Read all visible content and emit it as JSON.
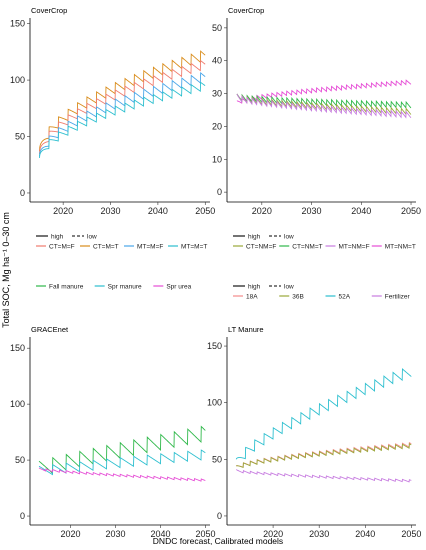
{
  "figure": {
    "y_axis_title": "Total SOC,  Mg ha⁻¹ 0–30 cm",
    "x_axis_title": "DNDC forecast, Calibrated models"
  },
  "colors": {
    "orange": "#d98c1a",
    "red_salmon": "#f07c6e",
    "blue": "#4aa6e8",
    "cyan": "#2cbfcf",
    "green": "#2fb84a",
    "olive": "#9aa83a",
    "purple": "#c77ce0",
    "magenta": "#e64ed6",
    "salmon_pink": "#f48a8a"
  },
  "legends": [
    {
      "linetype": {
        "solid": "high",
        "dashed": "low"
      },
      "items": [
        {
          "label": "CT=M=F",
          "color": "#f07c6e"
        },
        {
          "label": "CT=M=T",
          "color": "#d98c1a"
        },
        {
          "label": "MT=M=F",
          "color": "#4aa6e8"
        },
        {
          "label": "MT=M=T",
          "color": "#2cbfcf"
        }
      ]
    },
    {
      "linetype": {
        "solid": "high",
        "dashed": "low"
      },
      "items": [
        {
          "label": "CT=NM=F",
          "color": "#9aa83a"
        },
        {
          "label": "CT=NM=T",
          "color": "#2fb84a"
        },
        {
          "label": "MT=NM=F",
          "color": "#c77ce0"
        },
        {
          "label": "MT=NM=T",
          "color": "#e64ed6"
        }
      ]
    },
    {
      "items": [
        {
          "label": "Fall manure",
          "color": "#2fb84a"
        },
        {
          "label": "Spr manure",
          "color": "#2cbfcf"
        },
        {
          "label": "Spr urea",
          "color": "#e64ed6"
        }
      ]
    },
    {
      "linetype": {
        "solid": "high",
        "dashed": "low"
      },
      "items": [
        {
          "label": "18A",
          "color": "#f48a8a"
        },
        {
          "label": "36B",
          "color": "#9aa83a"
        },
        {
          "label": "52A",
          "color": "#2cbfcf"
        },
        {
          "label": "Fertilizer",
          "color": "#c77ce0"
        }
      ]
    }
  ],
  "chart_data": [
    {
      "type": "line",
      "title": "CoverCrop",
      "xlim": [
        2013,
        2051
      ],
      "ylim": [
        -8,
        155
      ],
      "x_ticks": [
        2020,
        2030,
        2040,
        2050
      ],
      "y_ticks": [
        0,
        50,
        100,
        150
      ],
      "grid": false,
      "legend_position": "bottom",
      "series": [
        {
          "name": "CT=M=T",
          "color": "#d98c1a",
          "x_start": 2015,
          "x_end": 2050,
          "start": 32,
          "end": 122,
          "curve": 0.5,
          "amp": 10,
          "period": 2
        },
        {
          "name": "CT=M=F",
          "color": "#f07c6e",
          "x_start": 2015,
          "x_end": 2050,
          "start": 30,
          "end": 114,
          "curve": 0.5,
          "amp": 9,
          "period": 2
        },
        {
          "name": "MT=M=F",
          "color": "#4aa6e8",
          "x_start": 2015,
          "x_end": 2050,
          "start": 28,
          "end": 103,
          "curve": 0.5,
          "amp": 9,
          "period": 2
        },
        {
          "name": "MT=M=T",
          "color": "#2cbfcf",
          "x_start": 2015,
          "x_end": 2050,
          "start": 27,
          "end": 95,
          "curve": 0.5,
          "amp": 8,
          "period": 2
        }
      ]
    },
    {
      "type": "line",
      "title": "CoverCrop",
      "xlim": [
        2013,
        2051
      ],
      "ylim": [
        -3,
        53
      ],
      "x_ticks": [
        2020,
        2030,
        2040,
        2050
      ],
      "y_ticks": [
        0,
        10,
        20,
        30,
        40,
        50
      ],
      "grid": false,
      "legend_position": "bottom",
      "series": [
        {
          "name": "MT=NM=T",
          "color": "#e64ed6",
          "x_start": 2015,
          "x_end": 2050,
          "start": 27,
          "end": 33.5,
          "curve": 0.6,
          "amp": 1.4,
          "period": 1
        },
        {
          "name": "CT=NM=T",
          "color": "#2fb84a",
          "x_start": 2015,
          "x_end": 2050,
          "start": 29,
          "end": 26.5,
          "curve": 0.6,
          "amp": 1.8,
          "period": 1
        },
        {
          "name": "CT=NM=F",
          "color": "#9aa83a",
          "x_start": 2015,
          "x_end": 2050,
          "start": 29,
          "end": 24.5,
          "curve": 0.6,
          "amp": 1.8,
          "period": 1
        },
        {
          "name": "MT=NM=F",
          "color": "#c77ce0",
          "x_start": 2015,
          "x_end": 2050,
          "start": 29,
          "end": 23.5,
          "curve": 0.6,
          "amp": 1.8,
          "period": 1
        }
      ]
    },
    {
      "type": "line",
      "title": "GRACEnet",
      "xlim": [
        2011,
        2051
      ],
      "ylim": [
        -8,
        160
      ],
      "x_ticks": [
        2020,
        2030,
        2040,
        2050
      ],
      "y_ticks": [
        0,
        50,
        100,
        150
      ],
      "grid": false,
      "legend_position": "top",
      "series": [
        {
          "name": "Fall manure",
          "color": "#2fb84a",
          "x_start": 2013,
          "x_end": 2050,
          "start": 42,
          "end": 74,
          "curve": 0.9,
          "amp": 14,
          "period": 3
        },
        {
          "name": "Spr manure",
          "color": "#2cbfcf",
          "x_start": 2013,
          "x_end": 2050,
          "start": 40,
          "end": 55,
          "curve": 0.9,
          "amp": 9,
          "period": 3
        },
        {
          "name": "Spr urea",
          "color": "#e64ed6",
          "x_start": 2013,
          "x_end": 2050,
          "start": 42,
          "end": 32,
          "curve": 0.8,
          "amp": 2,
          "period": 1.5
        }
      ]
    },
    {
      "type": "line",
      "title": "LT Manure",
      "xlim": [
        2010,
        2051
      ],
      "ylim": [
        -8,
        158
      ],
      "x_ticks": [
        2020,
        2030,
        2040,
        2050
      ],
      "y_ticks": [
        0,
        50,
        100,
        150
      ],
      "grid": false,
      "legend_position": "top",
      "series": [
        {
          "name": "52A",
          "color": "#2cbfcf",
          "x_start": 2012,
          "x_end": 2050,
          "start": 45,
          "end": 128,
          "curve": 0.7,
          "amp": 10,
          "period": 2
        },
        {
          "name": "18A",
          "color": "#f48a8a",
          "x_start": 2012,
          "x_end": 2050,
          "start": 42,
          "end": 63,
          "curve": 0.6,
          "amp": 4,
          "period": 1.5
        },
        {
          "name": "36B",
          "color": "#9aa83a",
          "x_start": 2012,
          "x_end": 2050,
          "start": 42,
          "end": 62,
          "curve": 0.6,
          "amp": 4,
          "period": 1.5
        },
        {
          "name": "Fertilizer",
          "color": "#c77ce0",
          "x_start": 2012,
          "x_end": 2050,
          "start": 40,
          "end": 31,
          "curve": 0.7,
          "amp": 2,
          "period": 1.5
        }
      ]
    }
  ]
}
